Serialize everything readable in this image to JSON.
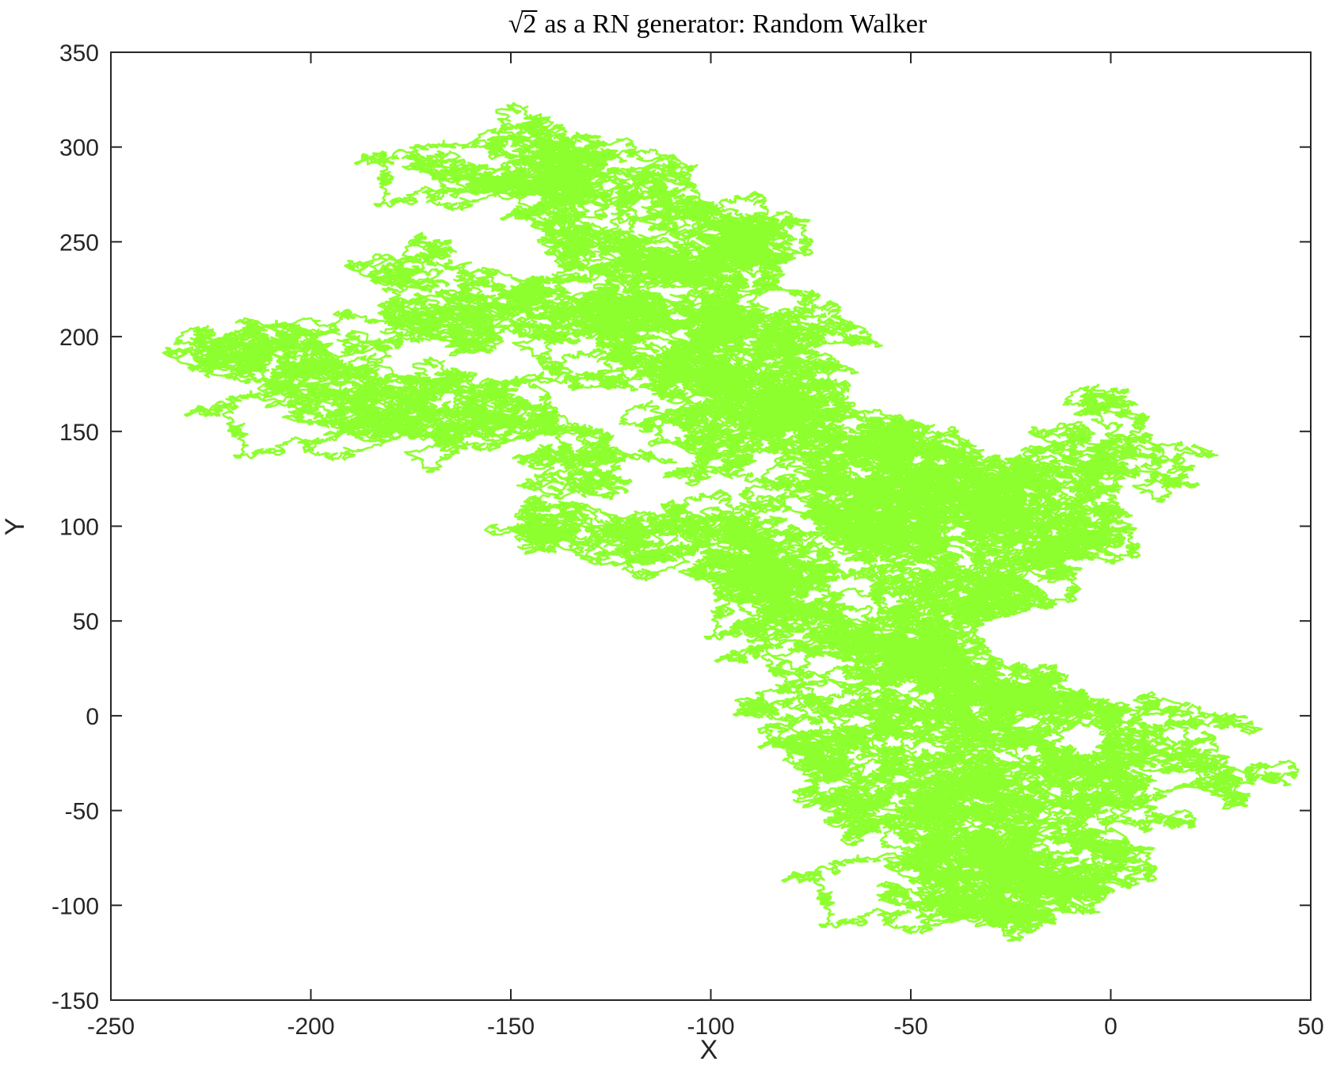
{
  "chart_data": {
    "type": "line",
    "title": {
      "radical": "√",
      "radicand": "2",
      "text": "as a RN generator: Random Walker"
    },
    "xlabel": "X",
    "ylabel": "Y",
    "xlim": [
      -250,
      50
    ],
    "ylim": [
      -150,
      350
    ],
    "xticks": [
      -250,
      -200,
      -150,
      -100,
      -50,
      0,
      50
    ],
    "yticks": [
      -150,
      -100,
      -50,
      0,
      50,
      100,
      150,
      200,
      250,
      300,
      350
    ],
    "xtick_labels": [
      "-250",
      "-200",
      "-150",
      "-100",
      "-50",
      "0",
      "50"
    ],
    "ytick_labels": [
      "-150",
      "-100",
      "-50",
      "0",
      "50",
      "100",
      "150",
      "200",
      "250",
      "300",
      "350"
    ],
    "grid": false,
    "line_color": "#8eff2e",
    "axis_color": "#262626",
    "series": [
      {
        "name": "",
        "anchors": [
          [
            0,
            0
          ],
          [
            -12,
            10
          ],
          [
            -20,
            -5
          ],
          [
            -35,
            10
          ],
          [
            -30,
            25
          ],
          [
            -45,
            30
          ],
          [
            -40,
            20
          ],
          [
            -55,
            10
          ],
          [
            -65,
            -10
          ],
          [
            -80,
            -15
          ],
          [
            -70,
            -30
          ],
          [
            -60,
            -45
          ],
          [
            -45,
            -35
          ],
          [
            -30,
            -40
          ],
          [
            -20,
            -55
          ],
          [
            -10,
            -60
          ],
          [
            0,
            -70
          ],
          [
            -5,
            -90
          ],
          [
            -25,
            -100
          ],
          [
            -40,
            -95
          ],
          [
            -50,
            -75
          ],
          [
            -35,
            -65
          ],
          [
            -20,
            -75
          ],
          [
            -25,
            -55
          ],
          [
            -10,
            -30
          ],
          [
            5,
            -20
          ],
          [
            20,
            -22
          ],
          [
            10,
            -10
          ],
          [
            0,
            0
          ],
          [
            -15,
            10
          ],
          [
            -30,
            30
          ],
          [
            -45,
            40
          ],
          [
            -55,
            35
          ],
          [
            -60,
            45
          ],
          [
            -70,
            60
          ],
          [
            -85,
            55
          ],
          [
            -80,
            70
          ],
          [
            -75,
            80
          ],
          [
            -90,
            75
          ],
          [
            -95,
            95
          ],
          [
            -80,
            110
          ],
          [
            -70,
            125
          ],
          [
            -55,
            115
          ],
          [
            -40,
            100
          ],
          [
            -20,
            90
          ],
          [
            -30,
            75
          ],
          [
            -45,
            72
          ],
          [
            -35,
            60
          ],
          [
            -20,
            70
          ],
          [
            -40,
            80
          ],
          [
            -55,
            95
          ],
          [
            -65,
            110
          ],
          [
            -55,
            135
          ],
          [
            -50,
            155
          ],
          [
            -35,
            140
          ],
          [
            -25,
            120
          ],
          [
            -15,
            105
          ],
          [
            -5,
            130
          ],
          [
            5,
            160
          ],
          [
            10,
            140
          ],
          [
            -5,
            125
          ],
          [
            -20,
            130
          ],
          [
            -40,
            125
          ],
          [
            -60,
            135
          ],
          [
            -75,
            150
          ],
          [
            -80,
            170
          ],
          [
            -70,
            180
          ],
          [
            -85,
            185
          ],
          [
            -100,
            165
          ],
          [
            -95,
            145
          ],
          [
            -105,
            130
          ],
          [
            -110,
            105
          ],
          [
            -100,
            95
          ],
          [
            -125,
            100
          ],
          [
            -145,
            110
          ],
          [
            -130,
            125
          ],
          [
            -125,
            140
          ],
          [
            -140,
            155
          ],
          [
            -150,
            175
          ],
          [
            -165,
            180
          ],
          [
            -160,
            170
          ],
          [
            -175,
            165
          ],
          [
            -170,
            150
          ],
          [
            -185,
            160
          ],
          [
            -200,
            170
          ],
          [
            -195,
            185
          ],
          [
            -215,
            195
          ],
          [
            -220,
            185
          ],
          [
            -205,
            205
          ],
          [
            -190,
            200
          ],
          [
            -175,
            210
          ],
          [
            -165,
            220
          ],
          [
            -180,
            225
          ],
          [
            -160,
            232
          ],
          [
            -145,
            225
          ],
          [
            -130,
            220
          ],
          [
            -120,
            210
          ],
          [
            -110,
            190
          ],
          [
            -100,
            200
          ],
          [
            -90,
            185
          ],
          [
            -80,
            175
          ],
          [
            -70,
            185
          ],
          [
            -85,
            200
          ],
          [
            -100,
            215
          ],
          [
            -95,
            230
          ],
          [
            -90,
            250
          ],
          [
            -100,
            245
          ],
          [
            -110,
            260
          ],
          [
            -120,
            250
          ],
          [
            -135,
            255
          ],
          [
            -130,
            270
          ],
          [
            -145,
            280
          ],
          [
            -160,
            290
          ],
          [
            -155,
            300
          ],
          [
            -145,
            310
          ],
          [
            -140,
            300
          ],
          [
            -130,
            285
          ],
          [
            -115,
            290
          ],
          [
            -120,
            275
          ],
          [
            -110,
            270
          ],
          [
            -100,
            265
          ],
          [
            -90,
            255
          ],
          [
            -85,
            235
          ],
          [
            -95,
            215
          ],
          [
            -105,
            220
          ],
          [
            -115,
            235
          ],
          [
            -125,
            225
          ],
          [
            -120,
            205
          ],
          [
            -110,
            195
          ],
          [
            -95,
            180
          ],
          [
            -80,
            160
          ],
          [
            -65,
            145
          ],
          [
            -55,
            130
          ],
          [
            -45,
            125
          ],
          [
            -35,
            118
          ],
          [
            -25,
            125
          ],
          [
            -15,
            112
          ],
          [
            -30,
            100
          ],
          [
            -45,
            110
          ],
          [
            -60,
            105
          ],
          [
            -75,
            90
          ],
          [
            -85,
            80
          ],
          [
            -70,
            65
          ],
          [
            -55,
            55
          ],
          [
            -40,
            45
          ],
          [
            -45,
            25
          ],
          [
            -30,
            15
          ],
          [
            -40,
            0
          ],
          [
            -55,
            -10
          ],
          [
            -45,
            -25
          ],
          [
            -30,
            -30
          ],
          [
            -15,
            -20
          ],
          [
            0,
            -25
          ],
          [
            -10,
            -45
          ],
          [
            -25,
            -60
          ],
          [
            -15,
            -85
          ],
          [
            -30,
            -90
          ],
          [
            -40,
            -80
          ],
          [
            -30,
            -70
          ],
          [
            -20,
            -80
          ]
        ]
      }
    ]
  }
}
